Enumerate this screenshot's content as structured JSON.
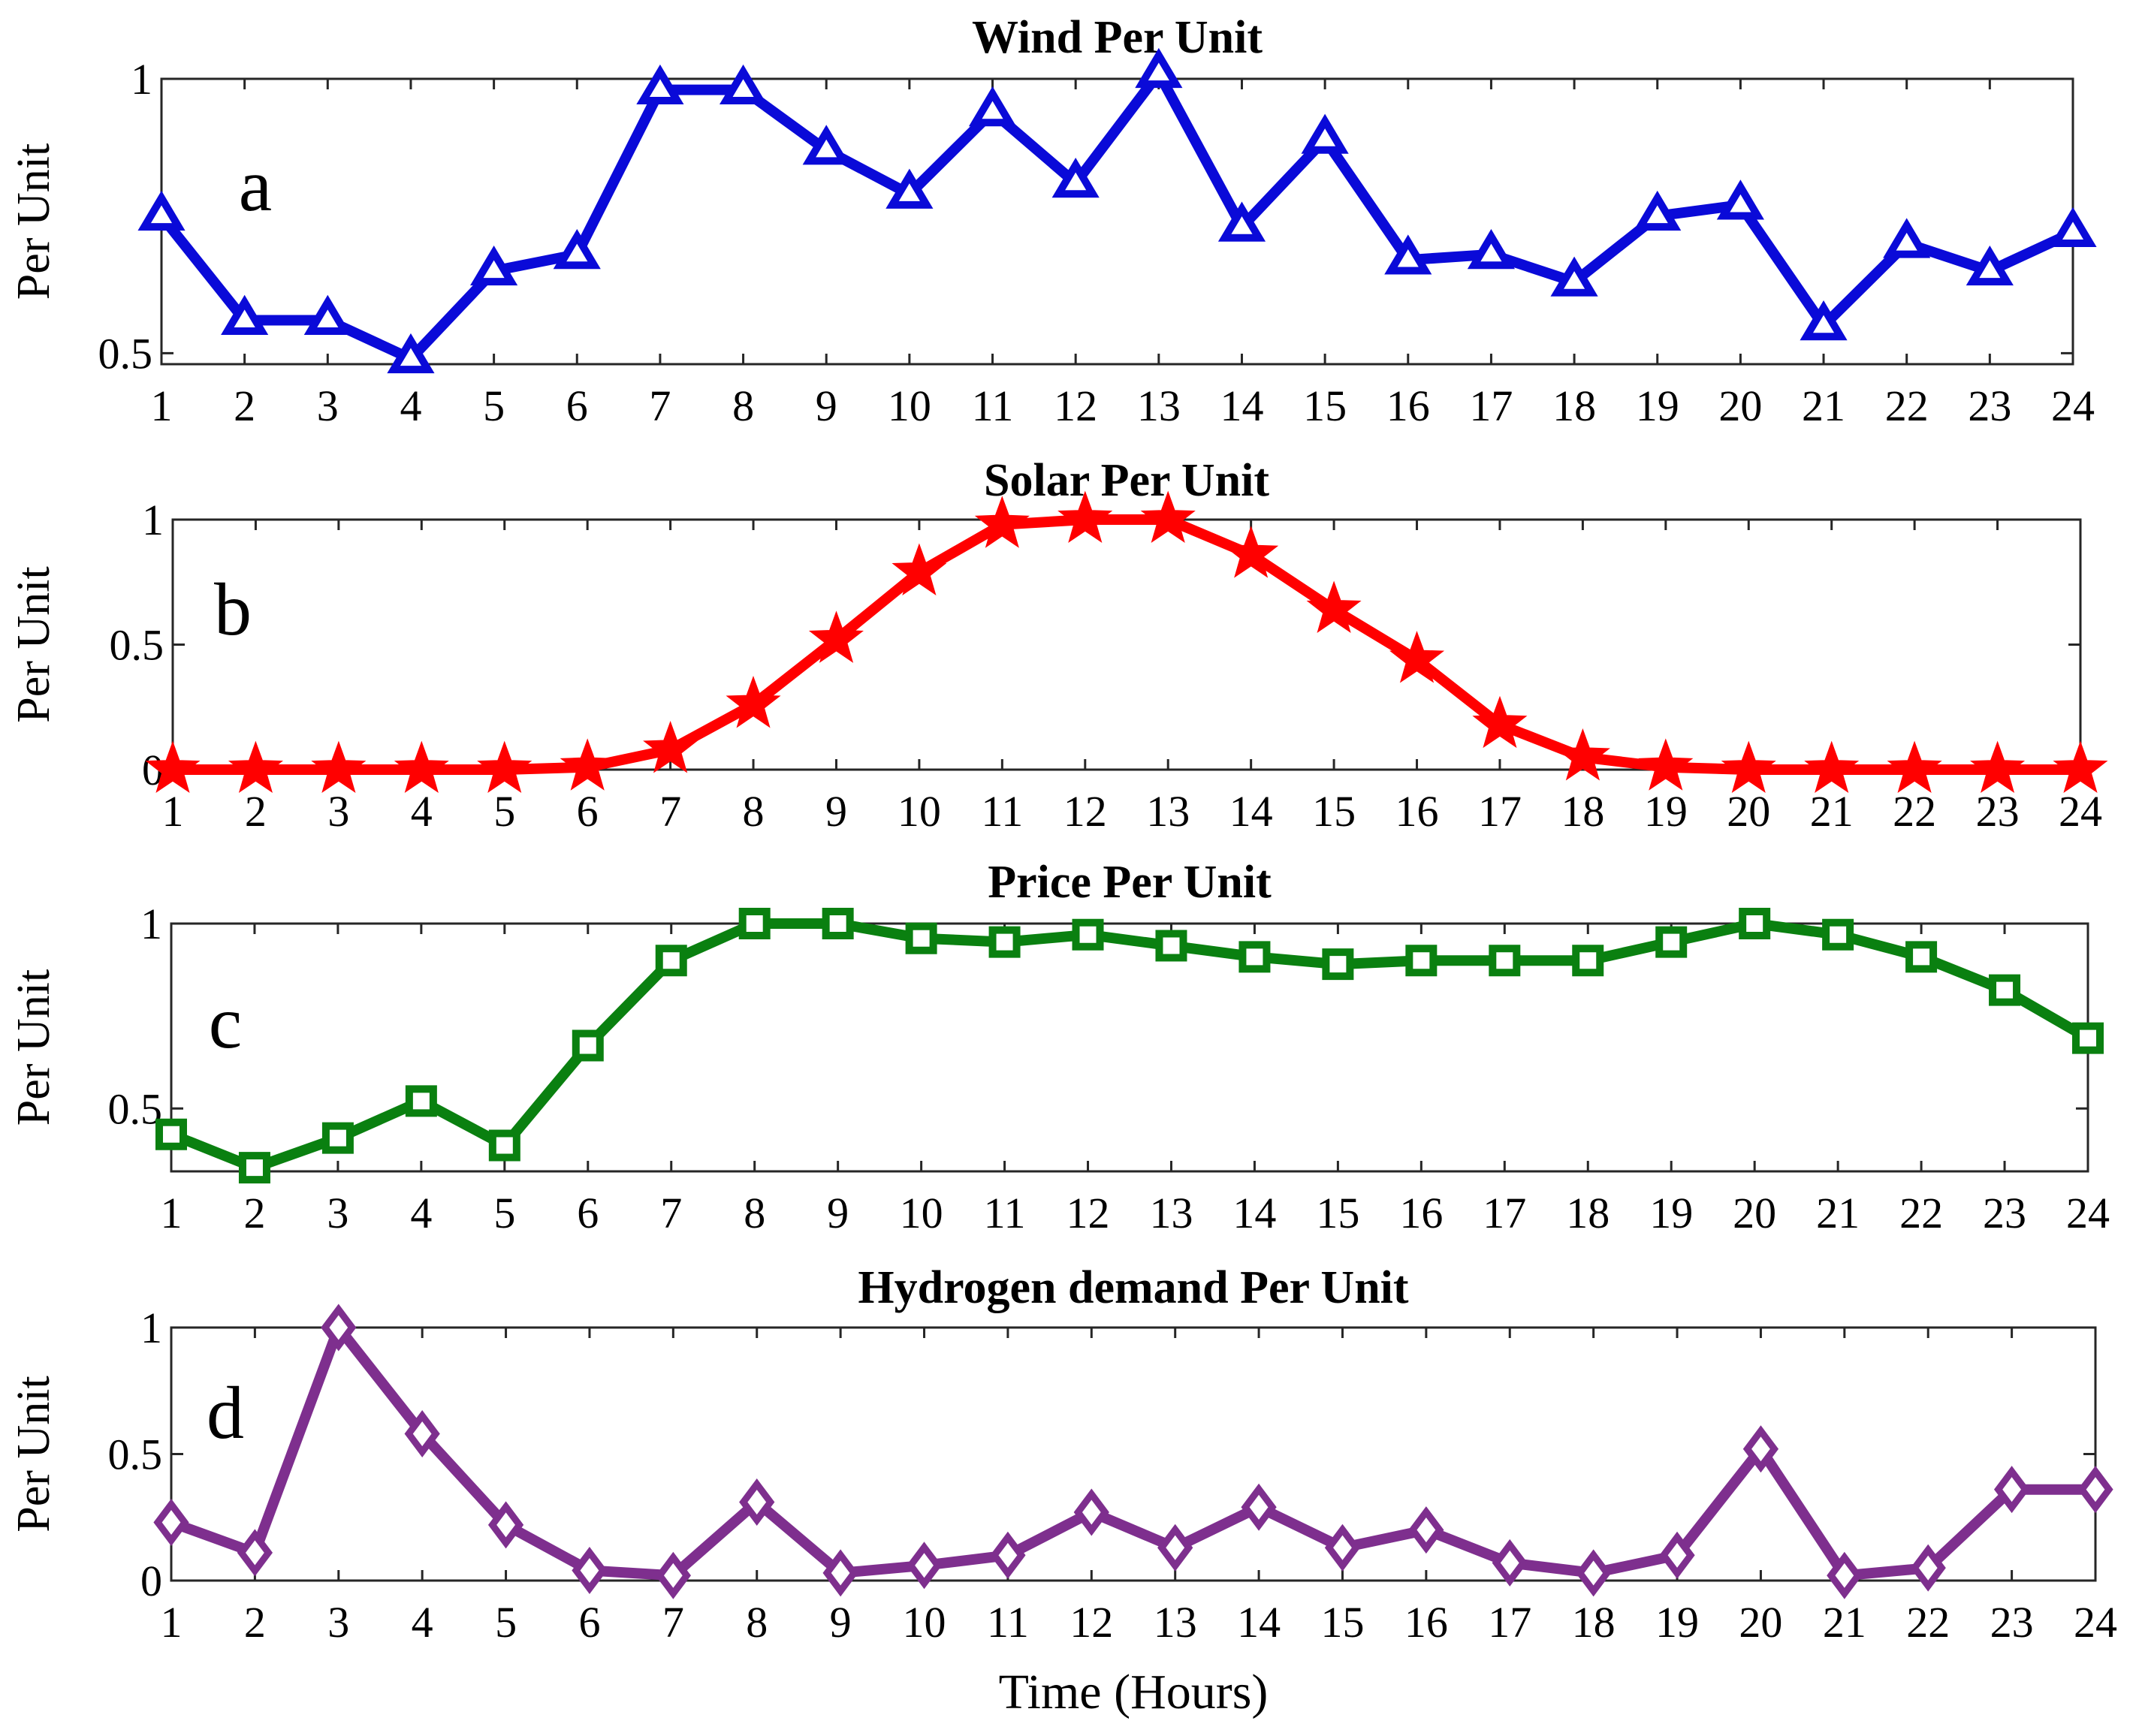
{
  "chart_data": [
    {
      "type": "line",
      "title": "Wind Per Unit",
      "panel_label": "a",
      "ylabel": "Per Unit",
      "xlabel": "",
      "x": [
        1,
        2,
        3,
        4,
        5,
        6,
        7,
        8,
        9,
        10,
        11,
        12,
        13,
        14,
        15,
        16,
        17,
        18,
        19,
        20,
        21,
        22,
        23,
        24
      ],
      "ylim": [
        0.48,
        1.0
      ],
      "yticks": [
        0.5,
        1
      ],
      "ytick_labels": [
        "0.5",
        "1"
      ],
      "marker": "triangle",
      "color": "#0a0ad8",
      "series": [
        {
          "name": "Wind",
          "values": [
            0.75,
            0.56,
            0.56,
            0.49,
            0.65,
            0.68,
            0.98,
            0.98,
            0.87,
            0.79,
            0.94,
            0.81,
            1.01,
            0.73,
            0.89,
            0.67,
            0.68,
            0.63,
            0.75,
            0.77,
            0.55,
            0.7,
            0.65,
            0.72
          ]
        }
      ]
    },
    {
      "type": "line",
      "title": "Solar Per Unit",
      "panel_label": "b",
      "ylabel": "Per Unit",
      "xlabel": "",
      "x": [
        1,
        2,
        3,
        4,
        5,
        6,
        7,
        8,
        9,
        10,
        11,
        12,
        13,
        14,
        15,
        16,
        17,
        18,
        19,
        20,
        21,
        22,
        23,
        24
      ],
      "ylim": [
        0,
        1
      ],
      "yticks": [
        0,
        0.5,
        1
      ],
      "ytick_labels": [
        "0",
        "0.5",
        "1"
      ],
      "marker": "star",
      "color": "#ff0000",
      "series": [
        {
          "name": "Solar",
          "values": [
            0,
            0,
            0,
            0,
            0,
            0.01,
            0.08,
            0.26,
            0.52,
            0.79,
            0.98,
            1.0,
            1.0,
            0.86,
            0.64,
            0.44,
            0.18,
            0.05,
            0.01,
            0,
            0,
            0,
            0,
            0
          ]
        }
      ]
    },
    {
      "type": "line",
      "title": "Price Per Unit",
      "panel_label": "c",
      "ylabel": "Per Unit",
      "xlabel": "",
      "x": [
        1,
        2,
        3,
        4,
        5,
        6,
        7,
        8,
        9,
        10,
        11,
        12,
        13,
        14,
        15,
        16,
        17,
        18,
        19,
        20,
        21,
        22,
        23,
        24
      ],
      "ylim": [
        0.33,
        1.0
      ],
      "yticks": [
        0.5,
        1
      ],
      "ytick_labels": [
        "0.5",
        "1"
      ],
      "marker": "square",
      "color": "#0a8010",
      "series": [
        {
          "name": "Price",
          "values": [
            0.43,
            0.34,
            0.42,
            0.52,
            0.4,
            0.67,
            0.9,
            1.0,
            1.0,
            0.96,
            0.95,
            0.97,
            0.94,
            0.91,
            0.89,
            0.9,
            0.9,
            0.9,
            0.95,
            1.0,
            0.97,
            0.91,
            0.82,
            0.69
          ]
        }
      ]
    },
    {
      "type": "line",
      "title": "Hydrogen demand Per Unit",
      "panel_label": "d",
      "ylabel": "Per Unit",
      "xlabel": "Time (Hours)",
      "x": [
        1,
        2,
        3,
        4,
        5,
        6,
        7,
        8,
        9,
        10,
        11,
        12,
        13,
        14,
        15,
        16,
        17,
        18,
        19,
        20,
        21,
        22,
        23,
        24
      ],
      "ylim": [
        0,
        1
      ],
      "yticks": [
        0,
        0.5,
        1
      ],
      "ytick_labels": [
        "0",
        "0.5",
        "1"
      ],
      "marker": "diamond",
      "color": "#7e2f8e",
      "series": [
        {
          "name": "Hydrogen demand",
          "values": [
            0.23,
            0.11,
            1.0,
            0.58,
            0.22,
            0.04,
            0.02,
            0.31,
            0.03,
            0.06,
            0.1,
            0.27,
            0.13,
            0.29,
            0.13,
            0.2,
            0.07,
            0.03,
            0.1,
            0.52,
            0.02,
            0.05,
            0.36,
            0.36
          ]
        }
      ]
    }
  ]
}
